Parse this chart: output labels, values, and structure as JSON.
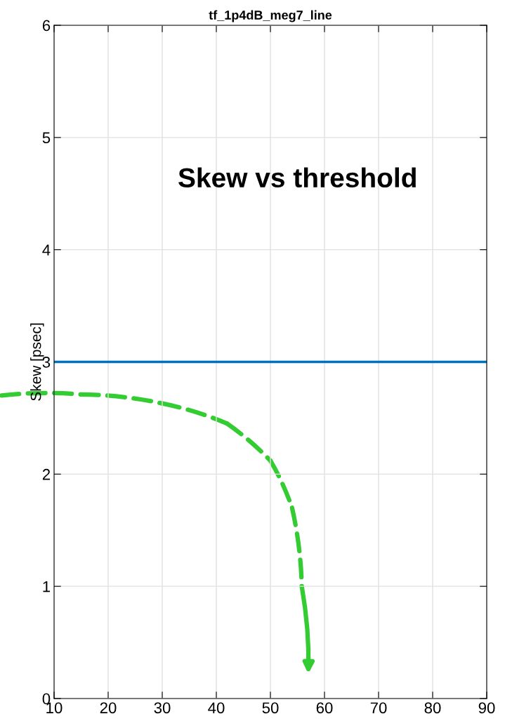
{
  "chart_data": {
    "type": "line",
    "title": "tf_1p4dB_meg7_line",
    "ylabel": "Skew [psec]",
    "annotations": [
      "Skew vs threshold"
    ],
    "x": [
      10,
      90
    ],
    "series": [
      {
        "color": "#0072bd",
        "values": [
          3.0,
          3.0
        ]
      }
    ],
    "xlim": [
      10,
      90
    ],
    "xticks": [
      10,
      20,
      30,
      40,
      50,
      60,
      70,
      80,
      90
    ],
    "ylim": [
      0,
      6
    ],
    "yticks": [
      0,
      1,
      2,
      3,
      4,
      5,
      6
    ],
    "grid": true,
    "marker": "none",
    "line_style": "solid"
  }
}
